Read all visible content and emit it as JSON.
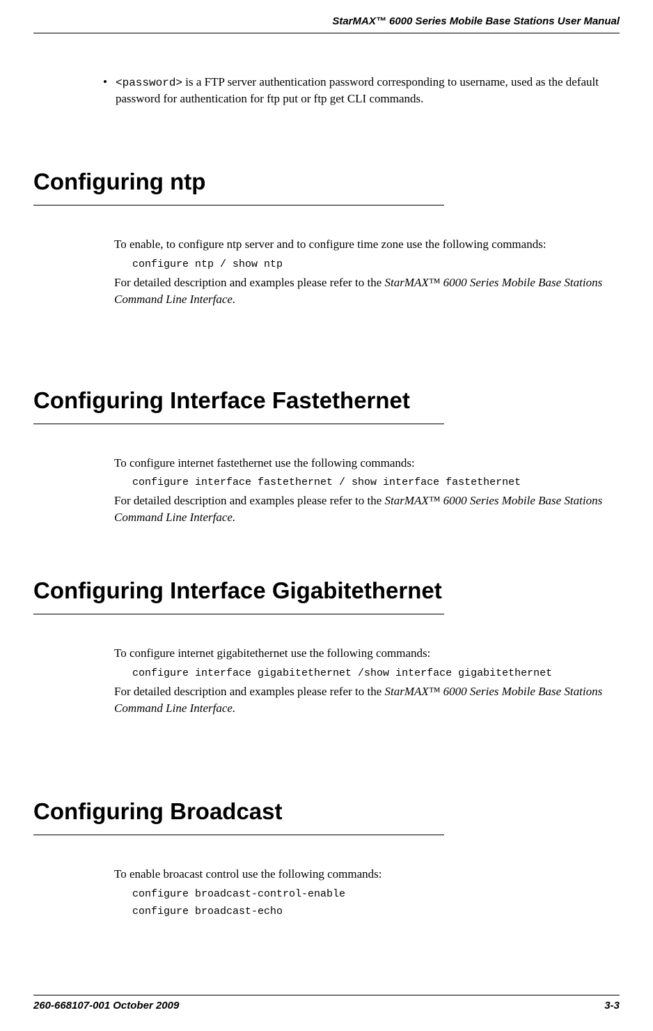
{
  "header": {
    "title": "StarMAX™ 6000 Series Mobile Base Stations User Manual"
  },
  "bullet": {
    "marker": "•",
    "code": "<password>",
    "text": " is a FTP server authentication password corresponding to username, used as the default password for authentication for ftp put or ftp get CLI commands."
  },
  "sections": {
    "ntp": {
      "heading": "Configuring ntp",
      "para1": "To enable, to configure ntp server and to configure time zone use the following commands:",
      "code": "configure ntp / show ntp",
      "para2_a": "For detailed description and examples please refer to the ",
      "para2_italic": "StarMAX™ 6000 Series Mobile Base Stations Command Line Interface.",
      "para2_b": ""
    },
    "fast": {
      "heading": "Configuring Interface Fastethernet",
      "para1": "To configure internet fastethernet use the following commands:",
      "code": "configure interface fastethernet  / show interface fastethernet",
      "para2_a": "For detailed description and examples please refer to the ",
      "para2_italic": "StarMAX™ 6000 Series Mobile Base Stations Command Line Interface.",
      "para2_b": ""
    },
    "giga": {
      "heading": "Configuring Interface Gigabitethernet",
      "para1": "To configure internet gigabitethernet use the following commands:",
      "code": "configure interface gigabitethernet /show interface gigabitethernet",
      "para2_a": "For detailed description and examples please refer to the ",
      "para2_italic": "StarMAX™ 6000 Series Mobile Base Stations Command Line Interface.",
      "para2_b": ""
    },
    "broadcast": {
      "heading": "Configuring Broadcast",
      "para1": "To enable broacast control use the following commands:",
      "code1": "configure broadcast-control-enable",
      "code2": "configure broadcast-echo"
    }
  },
  "footer": {
    "left": "260-668107-001 October 2009",
    "right": "3-3"
  }
}
